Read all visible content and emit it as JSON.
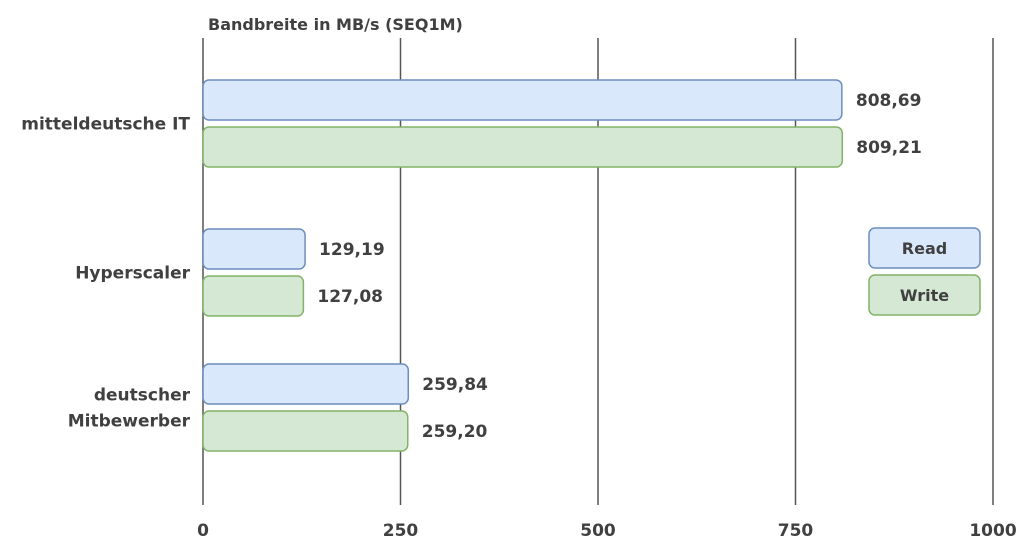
{
  "chart_data": {
    "type": "bar",
    "orientation": "horizontal",
    "title": "Bandbreite in MB/s (SEQ1M)",
    "categories": [
      [
        "mitteldeutsche IT"
      ],
      [
        "Hyperscaler"
      ],
      [
        "deutscher",
        "Mitbewerber"
      ]
    ],
    "series": [
      {
        "name": "Read",
        "values": [
          808.69,
          129.19,
          259.84
        ],
        "labels": [
          "808,69",
          "129,19",
          "259,84"
        ]
      },
      {
        "name": "Write",
        "values": [
          809.21,
          127.08,
          259.2
        ],
        "labels": [
          "809,21",
          "127,08",
          "259,20"
        ]
      }
    ],
    "xlim": [
      0,
      1000
    ],
    "xticks": [
      "0",
      "250",
      "500",
      "750",
      "1000"
    ],
    "xtick_values": [
      0,
      250,
      500,
      750,
      1000
    ],
    "grid": "vertical",
    "legend_position": "right",
    "colors": {
      "Read": {
        "fill": "#dae8fc",
        "stroke": "#6c8ebf"
      },
      "Write": {
        "fill": "#d5e8d4",
        "stroke": "#82b366"
      },
      "grid": "#555555",
      "text": "#404040"
    }
  }
}
